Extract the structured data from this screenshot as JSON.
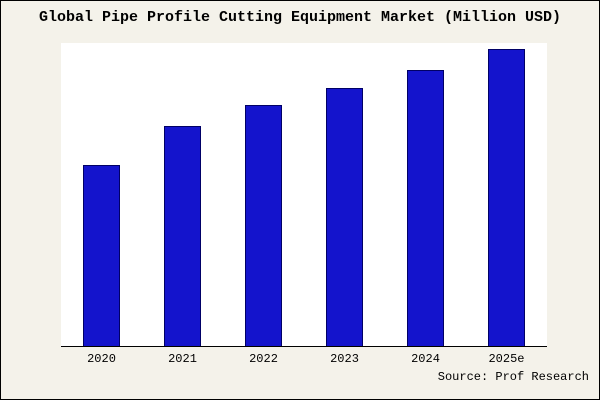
{
  "title": "Global Pipe Profile Cutting Equipment Market (Million USD)",
  "source": "Source: Prof Research",
  "colors": {
    "background": "#f4f2ea",
    "plot_background": "#ffffff",
    "bar_fill": "#1414cc",
    "bar_border": "#000066",
    "axis": "#000000"
  },
  "chart_data": {
    "type": "bar",
    "title": "Global Pipe Profile Cutting Equipment Market (Million USD)",
    "categories": [
      "2020",
      "2021",
      "2022",
      "2023",
      "2024",
      "2025e"
    ],
    "values": [
      61,
      74,
      81,
      87,
      93,
      100
    ],
    "xlabel": "",
    "ylabel": "",
    "ylim": [
      0,
      102
    ],
    "grid": false,
    "legend": false,
    "annotation": "Source: Prof Research"
  }
}
